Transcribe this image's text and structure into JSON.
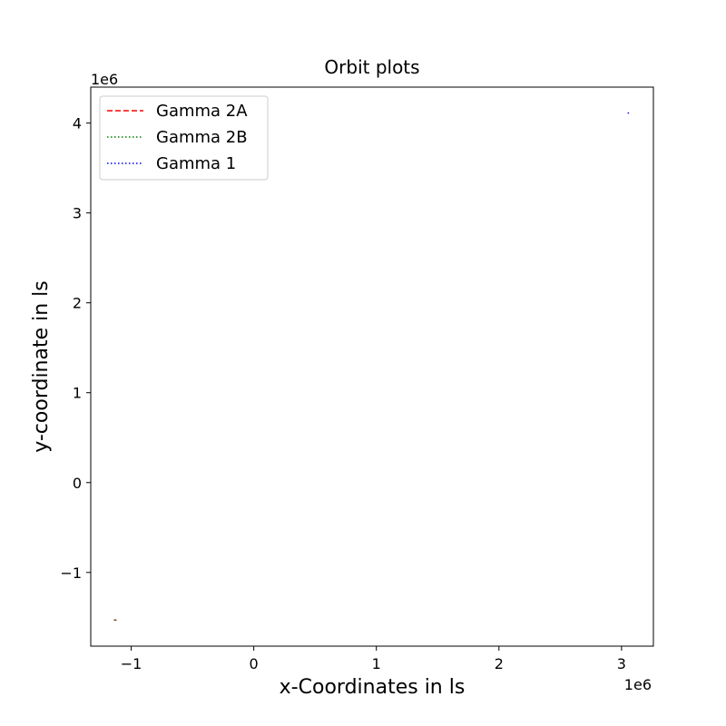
{
  "chart_data": {
    "type": "line",
    "title": "Orbit plots",
    "xlabel": "x-Coordinates in ls",
    "ylabel": "y-coordinate in ls",
    "x_offset_text": "1e6",
    "y_offset_text": "1e6",
    "xlim": [
      -1330000,
      3260000
    ],
    "ylim": [
      -1820000,
      4400000
    ],
    "x_ticks": [
      {
        "value": -1000000,
        "label": "−1"
      },
      {
        "value": 0,
        "label": "0"
      },
      {
        "value": 1000000,
        "label": "1"
      },
      {
        "value": 2000000,
        "label": "2"
      },
      {
        "value": 3000000,
        "label": "3"
      }
    ],
    "y_ticks": [
      {
        "value": -1000000,
        "label": "−1"
      },
      {
        "value": 0,
        "label": "0"
      },
      {
        "value": 1000000,
        "label": "1"
      },
      {
        "value": 2000000,
        "label": "2"
      },
      {
        "value": 3000000,
        "label": "3"
      },
      {
        "value": 4000000,
        "label": "4"
      }
    ],
    "legend_position": "upper-left",
    "grid": false,
    "series": [
      {
        "name": "Gamma  2A",
        "color": "#ff0000",
        "linestyle": "dashed",
        "x": [
          -1140000,
          -1120000
        ],
        "y": [
          -1530000,
          -1530000
        ]
      },
      {
        "name": "Gamma  2B",
        "color": "#008000",
        "linestyle": "dotted",
        "x": [
          -1140000,
          -1110000
        ],
        "y": [
          -1530000,
          -1530000
        ]
      },
      {
        "name": "Gamma  1",
        "color": "#0000ff",
        "linestyle": "dotted",
        "x": [
          3050000,
          3062000
        ],
        "y": [
          4112000,
          4112000
        ]
      }
    ]
  }
}
